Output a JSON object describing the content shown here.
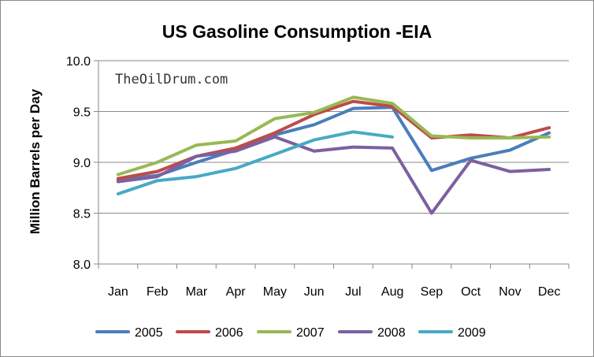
{
  "chart_data": {
    "type": "line",
    "title": "US Gasoline Consumption -EIA",
    "xlabel": "",
    "ylabel": "Million Barrels per Day",
    "watermark": "TheOilDrum.com",
    "categories": [
      "Jan",
      "Feb",
      "Mar",
      "Apr",
      "May",
      "Jun",
      "Jul",
      "Aug",
      "Sep",
      "Oct",
      "Nov",
      "Dec"
    ],
    "ylim": [
      8.0,
      10.0
    ],
    "yticks": [
      "8.0",
      "8.5",
      "9.0",
      "9.5",
      "10.0"
    ],
    "grid": "horizontal",
    "legend": "bottom",
    "series": [
      {
        "name": "2005",
        "color": "#4a7ebb",
        "values": [
          8.83,
          8.87,
          9.0,
          9.12,
          9.27,
          9.37,
          9.53,
          9.54,
          8.92,
          9.04,
          9.12,
          9.29
        ]
      },
      {
        "name": "2006",
        "color": "#be4b48",
        "values": [
          8.84,
          8.91,
          9.06,
          9.14,
          9.29,
          9.47,
          9.6,
          9.55,
          9.24,
          9.27,
          9.24,
          9.34
        ]
      },
      {
        "name": "2007",
        "color": "#98b954",
        "values": [
          8.88,
          9.0,
          9.17,
          9.21,
          9.43,
          9.49,
          9.64,
          9.58,
          9.26,
          9.24,
          9.24,
          9.25
        ]
      },
      {
        "name": "2008",
        "color": "#7d60a0",
        "values": [
          8.81,
          8.86,
          9.06,
          9.11,
          9.25,
          9.11,
          9.15,
          9.14,
          8.5,
          9.02,
          8.91,
          8.93
        ]
      },
      {
        "name": "2009",
        "color": "#46aac5",
        "values": [
          8.69,
          8.82,
          8.86,
          8.94,
          9.08,
          9.22,
          9.3,
          9.25,
          null,
          null,
          null,
          null
        ]
      }
    ]
  }
}
